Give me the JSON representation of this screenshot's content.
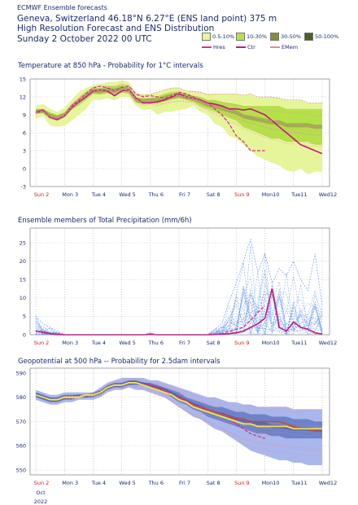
{
  "header": {
    "line1": "ECMWF Ensemble forecasts",
    "line2": "Geneva, Switzerland 46.18°N 6.27°E (ENS land point) 375 m",
    "line3": "High Resolution Forecast and ENS Distribution",
    "line4": "Sunday  2 October 2022 00 UTC"
  },
  "legend": {
    "prob": [
      {
        "label": "0.5-10%",
        "color": "#e6f59a"
      },
      {
        "label": "10-30%",
        "color": "#b5e04a"
      },
      {
        "label": "30-50%",
        "color": "#7f8f3a"
      },
      {
        "label": "50-100%",
        "color": "#4d5e1f"
      }
    ],
    "lines": [
      {
        "label": "Hres",
        "color": "#d63384",
        "style": "dashed"
      },
      {
        "label": "Ctr",
        "color": "#c2187a",
        "style": "solid"
      },
      {
        "label": "EMem",
        "color": "#e08aa0",
        "style": "dashed"
      }
    ]
  },
  "x_axis": {
    "labels": [
      "Sun 2",
      "Mon 3",
      "Tue 4",
      "Wed 5",
      "Thu 6",
      "Fri 7",
      "Sat 8",
      "Sun 9",
      "Mon10",
      "Tue11",
      "Wed12"
    ],
    "sunday_indices": [
      0,
      7
    ],
    "sub_labels": [
      "Oct",
      "2022"
    ]
  },
  "chart_data": [
    {
      "type": "area",
      "title": "Temperature at 850 hPa - Probability for 1°C intervals",
      "ylim": [
        -3,
        15
      ],
      "yticks": [
        -3,
        0,
        3,
        6,
        9,
        12,
        15
      ],
      "x_days": [
        0,
        0.25,
        0.5,
        0.75,
        1,
        1.25,
        1.5,
        1.75,
        2,
        2.25,
        2.5,
        2.75,
        3,
        3.25,
        3.5,
        3.75,
        4,
        4.25,
        4.5,
        4.75,
        5,
        5.25,
        5.5,
        5.75,
        6,
        6.25,
        6.5,
        6.75,
        7,
        7.25,
        7.5,
        7.75,
        8,
        8.25,
        8.5,
        8.75,
        9,
        9.25,
        9.5,
        9.75,
        10
      ],
      "outer_low": [
        8.3,
        8.8,
        7.2,
        7.0,
        7.2,
        8.0,
        9.0,
        10.0,
        11.5,
        11.5,
        11.8,
        11.4,
        12.0,
        12.0,
        10.5,
        9.8,
        10.0,
        9.0,
        9.5,
        9.5,
        9.8,
        10.0,
        10.5,
        9.5,
        9.0,
        7.5,
        7.0,
        5.5,
        5.0,
        4.0,
        3.0,
        2.0,
        1.5,
        1.0,
        0.5,
        -0.3,
        -0.5,
        0.0,
        -1.0,
        -0.5,
        -0.5
      ],
      "outer_high": [
        10.5,
        10.8,
        10.0,
        9.5,
        10.2,
        11.5,
        12.8,
        13.5,
        14.0,
        14.2,
        14.5,
        14.5,
        14.8,
        14.5,
        12.5,
        12.5,
        12.5,
        12.8,
        13.2,
        13.5,
        13.5,
        13.0,
        13.0,
        12.8,
        12.5,
        12.5,
        12.5,
        12.5,
        12.5,
        12.3,
        12.5,
        12.0,
        12.0,
        12.0,
        11.8,
        11.5,
        11.5,
        11.5,
        11.0,
        11.0,
        11.0
      ],
      "inner_low": [
        9.2,
        9.3,
        8.3,
        8.0,
        8.6,
        9.8,
        10.6,
        11.5,
        12.5,
        12.4,
        12.6,
        12.3,
        12.8,
        12.5,
        11.0,
        10.8,
        11.0,
        10.8,
        11.2,
        11.5,
        11.8,
        11.5,
        11.2,
        10.5,
        10.0,
        9.5,
        9.0,
        8.5,
        8.0,
        7.0,
        6.5,
        6.0,
        5.5,
        5.0,
        5.0,
        4.5,
        4.5,
        4.5,
        4.5,
        4.0,
        4.0
      ],
      "inner_high": [
        9.9,
        10.0,
        9.4,
        9.0,
        9.4,
        10.8,
        11.8,
        12.8,
        13.5,
        13.5,
        13.8,
        13.8,
        14.0,
        13.8,
        12.0,
        11.8,
        11.8,
        12.0,
        12.5,
        12.8,
        12.8,
        12.5,
        12.2,
        12.0,
        11.5,
        11.5,
        11.2,
        11.0,
        10.8,
        10.5,
        10.5,
        10.5,
        10.5,
        10.5,
        10.5,
        10.0,
        10.0,
        10.0,
        10.0,
        10.0,
        10.0
      ],
      "series": [
        {
          "name": "Ctr",
          "values": [
            9.3,
            9.8,
            8.6,
            8.2,
            8.8,
            10.2,
            11.2,
            12.0,
            13.0,
            13.2,
            13.0,
            12.2,
            13.0,
            13.2,
            11.8,
            11.0,
            11.0,
            11.2,
            11.5,
            12.0,
            12.5,
            12.0,
            11.8,
            11.5,
            11.0,
            10.8,
            10.5,
            10.0,
            10.0,
            9.8,
            10.0,
            9.5,
            9.0,
            8.0,
            7.0,
            6.0,
            5.0,
            4.0,
            3.5,
            3.0,
            2.5
          ]
        },
        {
          "name": "Hres",
          "values": [
            9.5,
            9.8,
            8.5,
            8.3,
            8.9,
            10.5,
            11.5,
            12.5,
            13.5,
            13.8,
            13.5,
            13.0,
            13.6,
            13.8,
            12.5,
            12.0,
            12.2,
            12.0,
            11.8,
            12.2,
            12.8,
            12.5,
            12.0,
            11.5,
            11.0,
            10.0,
            9.0,
            7.5,
            5.5,
            4.5,
            3.0,
            3.0,
            3.0
          ]
        },
        {
          "name": "EMem",
          "values": [
            9.4,
            9.6,
            8.7,
            8.4,
            8.9,
            10.3,
            11.3,
            12.2,
            13.1,
            13.2,
            13.1,
            12.8,
            13.3,
            13.1,
            11.6,
            11.2,
            11.4,
            11.5,
            11.9,
            12.2,
            12.3,
            12.0,
            11.8,
            11.3,
            10.8,
            10.5,
            10.2,
            9.8,
            9.5,
            9.0,
            8.8,
            8.5,
            8.2,
            8.0,
            7.8,
            7.5,
            7.5,
            7.4,
            7.2,
            7.0,
            7.0
          ]
        }
      ]
    },
    {
      "type": "line",
      "title": "Ensemble members of Total Precipitation (mm/6h)",
      "ylim": [
        0,
        29
      ],
      "yticks": [
        0,
        5,
        10,
        15,
        20,
        25
      ],
      "x_days": [
        0,
        0.25,
        0.5,
        0.75,
        1,
        1.25,
        1.5,
        1.75,
        2,
        2.25,
        2.5,
        2.75,
        3,
        3.25,
        3.5,
        3.75,
        4,
        4.25,
        4.5,
        4.75,
        5,
        5.25,
        5.5,
        5.75,
        6,
        6.25,
        6.5,
        6.75,
        7,
        7.25,
        7.5,
        7.75,
        8,
        8.25,
        8.5,
        8.75,
        9,
        9.25,
        9.5,
        9.75,
        10
      ],
      "series": [
        {
          "name": "Ctr",
          "values": [
            1.0,
            0.8,
            0.3,
            0.1,
            0,
            0,
            0,
            0,
            0,
            0,
            0,
            0,
            0,
            0,
            0,
            0,
            0.1,
            0,
            0,
            0,
            0,
            0,
            0,
            0,
            0,
            0.1,
            0.2,
            0.3,
            0.5,
            1.0,
            2.0,
            3.0,
            4.5,
            12.5,
            2.0,
            1.0,
            3.5,
            2.0,
            1.5,
            0.5,
            0.2
          ]
        },
        {
          "name": "Hres",
          "values": [
            1.2,
            0.5,
            0.2,
            0,
            0,
            0,
            0,
            0,
            0,
            0,
            0,
            0,
            0,
            0,
            0,
            0,
            0.1,
            0,
            0,
            0,
            0,
            0,
            0,
            0,
            0,
            0,
            0.3,
            1.0,
            1.5,
            2.0,
            4.0,
            6.0,
            8.0
          ]
        },
        {
          "name": "max",
          "values": [
            5.0,
            3.0,
            2.0,
            1.0,
            0,
            0,
            0,
            0,
            0,
            0,
            0,
            0,
            0,
            0,
            0,
            0,
            0.5,
            0,
            0,
            0,
            0,
            0,
            0,
            0,
            0,
            1.5,
            3.0,
            9.0,
            14.0,
            20.0,
            26.0,
            17.0,
            22.0,
            14.0,
            18.0,
            16.0,
            20.0,
            15.0,
            12.0,
            22.0,
            8.0
          ]
        }
      ]
    },
    {
      "type": "area",
      "title": "Geopotential at 500 hPa -- Probability for 2.5dam intervals",
      "ylim": [
        548,
        592
      ],
      "yticks": [
        550,
        560,
        570,
        580,
        590
      ],
      "x_days": [
        0,
        0.25,
        0.5,
        0.75,
        1,
        1.25,
        1.5,
        1.75,
        2,
        2.25,
        2.5,
        2.75,
        3,
        3.25,
        3.5,
        3.75,
        4,
        4.25,
        4.5,
        4.75,
        5,
        5.25,
        5.5,
        5.75,
        6,
        6.25,
        6.5,
        6.75,
        7,
        7.25,
        7.5,
        7.75,
        8,
        8.25,
        8.5,
        8.75,
        9,
        9.25,
        9.5,
        9.75,
        10
      ],
      "outer_low": [
        579,
        578,
        577,
        577,
        578,
        578,
        579,
        579,
        579,
        580,
        582,
        583,
        583,
        584,
        583,
        583,
        582,
        581,
        580,
        578,
        576,
        574,
        572,
        571,
        569,
        567,
        566,
        564,
        562,
        560,
        558,
        557,
        556,
        555,
        554,
        554,
        553,
        553,
        552,
        552,
        552
      ],
      "outer_high": [
        583,
        582,
        581,
        581,
        582,
        582,
        582,
        582,
        582,
        584,
        586,
        587,
        588,
        588,
        588,
        588,
        587,
        587,
        586,
        585,
        584,
        583,
        582,
        581,
        580,
        580,
        579,
        578,
        578,
        577,
        577,
        576,
        576,
        576,
        576,
        576,
        575,
        575,
        575,
        575,
        575
      ],
      "inner_low": [
        580,
        579,
        578,
        578,
        579,
        579,
        580,
        580,
        580,
        581,
        583,
        584,
        584,
        585,
        585,
        585,
        584,
        583,
        582,
        580,
        578,
        577,
        575,
        574,
        572,
        571,
        570,
        569,
        568,
        567,
        566,
        565,
        565,
        564,
        564,
        563,
        563,
        563,
        563,
        563,
        563
      ],
      "inner_high": [
        582,
        581,
        580,
        580,
        581,
        581,
        581,
        581,
        582,
        583,
        585,
        586,
        586,
        587,
        587,
        586,
        586,
        585,
        584,
        583,
        582,
        580,
        579,
        578,
        577,
        576,
        576,
        575,
        574,
        574,
        573,
        573,
        573,
        572,
        572,
        572,
        571,
        571,
        571,
        570,
        570
      ],
      "series": [
        {
          "name": "Ctr",
          "values": [
            581,
            580,
            579,
            579,
            580,
            580,
            580,
            581,
            581,
            582,
            584,
            585,
            585,
            586,
            586,
            585,
            585,
            584,
            583,
            581,
            580,
            578,
            577,
            576,
            575,
            574,
            573,
            572,
            571,
            571,
            570,
            570,
            570,
            570,
            570,
            569,
            568,
            567,
            567,
            566,
            566
          ]
        },
        {
          "name": "Hres",
          "values": [
            581,
            580,
            579,
            579,
            580,
            580,
            580,
            581,
            581,
            582,
            584,
            585,
            585,
            586,
            586,
            585,
            585,
            584,
            583,
            581,
            580,
            579,
            577,
            576,
            574,
            573,
            572,
            571,
            569,
            567,
            565,
            564,
            563
          ]
        },
        {
          "name": "EMem",
          "values": [
            581,
            580,
            579,
            579,
            580,
            580,
            580,
            581,
            581,
            582,
            584,
            585,
            585,
            586,
            586,
            585,
            584,
            583,
            582,
            581,
            579,
            578,
            576,
            575,
            574,
            573,
            572,
            571,
            570,
            569,
            569,
            568,
            568,
            568,
            568,
            568,
            567,
            567,
            567,
            567,
            567
          ]
        }
      ]
    }
  ]
}
